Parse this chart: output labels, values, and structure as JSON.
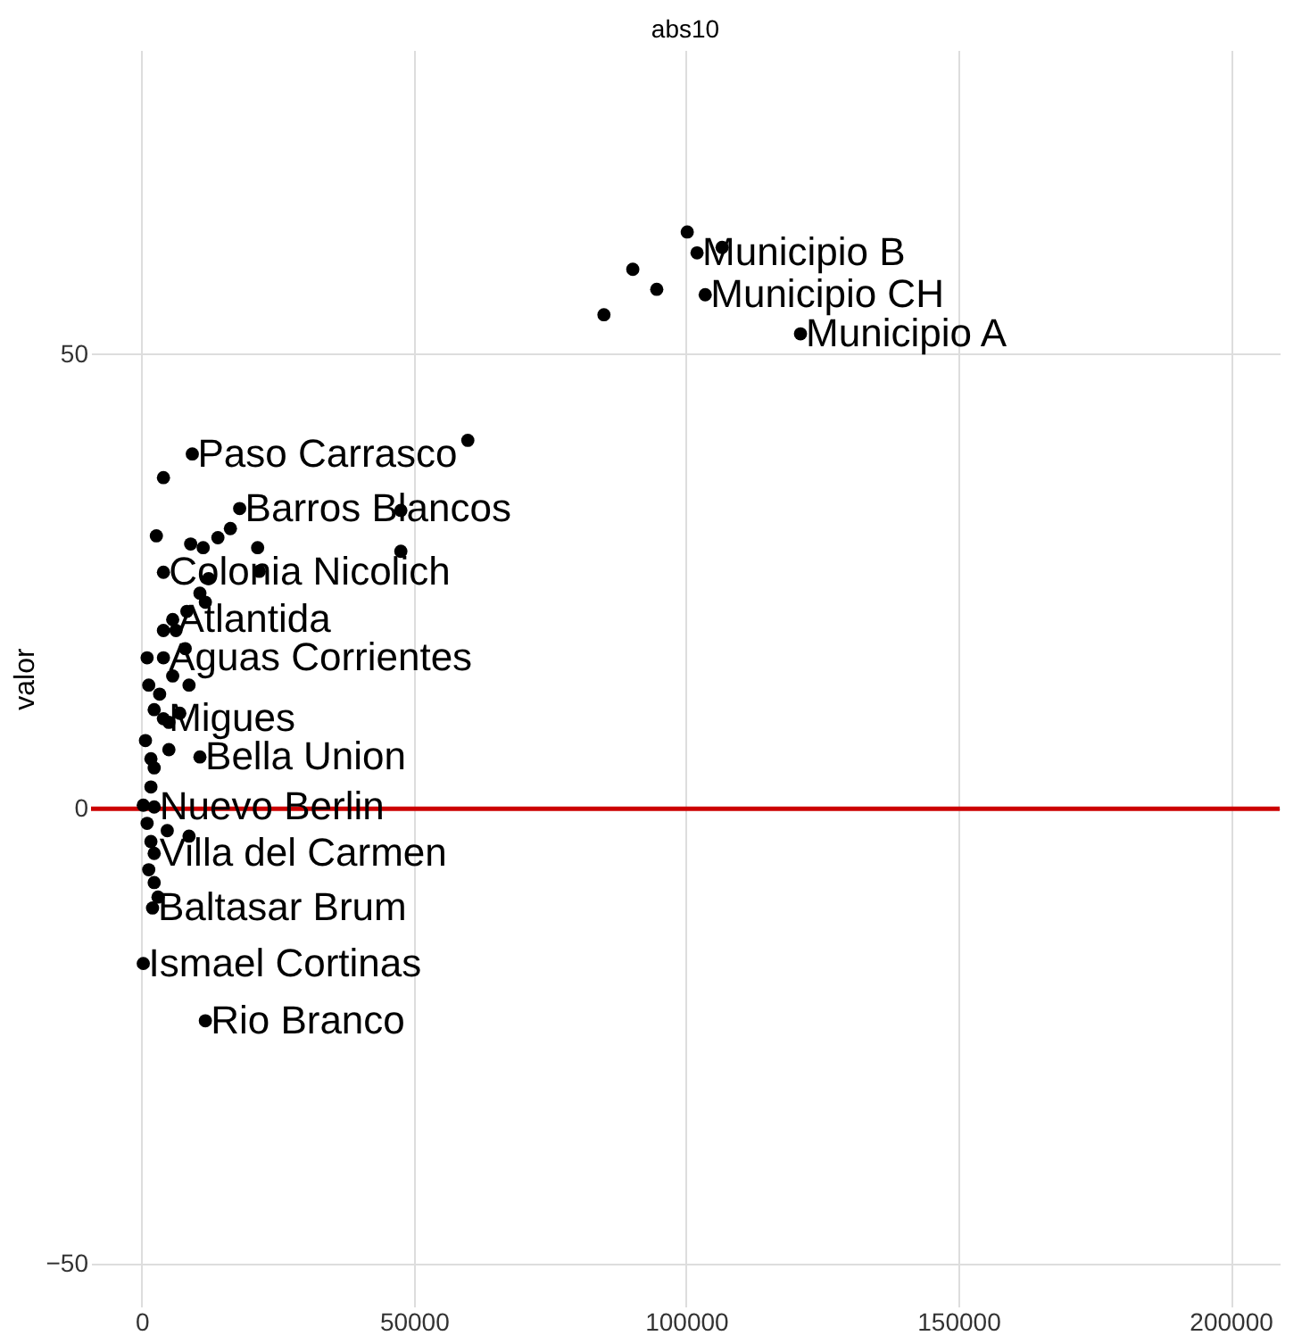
{
  "chart_data": {
    "type": "scatter",
    "title": "abs10",
    "ylabel": "valor",
    "x": [
      9300,
      18000,
      4000,
      5700,
      4000,
      4000,
      10700,
      2300,
      2300,
      2000,
      300,
      11700,
      102000,
      103500,
      121000,
      100200,
      106600,
      90200,
      94600,
      84900,
      59900,
      47600,
      47600,
      21300,
      4000,
      2700,
      9000,
      11300,
      14000,
      16300,
      21600,
      8700,
      12300,
      8300,
      10700,
      11700,
      4000,
      1000,
      1300,
      2300,
      7000,
      700,
      2300,
      5700,
      1700,
      1000,
      8700,
      1700,
      1300,
      2300,
      4700,
      3000,
      5000,
      1700,
      6300,
      8000,
      3300,
      5000,
      300
    ],
    "series": [
      {
        "color": "#000000",
        "values": [
          39,
          33,
          26,
          20.8,
          16.6,
          9.9,
          5.7,
          0.2,
          -4.9,
          -10.9,
          -17,
          -23.3,
          61.1,
          56.5,
          52.2,
          63.4,
          61.7,
          59.3,
          57.1,
          54.3,
          40.5,
          32.8,
          28.3,
          28.7,
          36.4,
          30,
          29.1,
          28.7,
          29.8,
          30.8,
          26.1,
          13.6,
          25.3,
          21.7,
          23.7,
          22.7,
          19.6,
          16.6,
          13.6,
          10.9,
          10.5,
          7.5,
          4.5,
          14.6,
          2.4,
          -1.6,
          -3,
          -3.6,
          -6.7,
          -8.1,
          -2.4,
          -9.7,
          6.5,
          5.5,
          19.6,
          17.6,
          12.6,
          9.5,
          0.4
        ]
      }
    ],
    "annotations": [
      {
        "text": "Paso Carrasco",
        "x": 9300,
        "y": 39
      },
      {
        "text": "Barros Blancos",
        "x": 18000,
        "y": 33
      },
      {
        "text": "Colonia Nicolich",
        "x": 4000,
        "y": 26
      },
      {
        "text": "Atlantida",
        "x": 5700,
        "y": 20.8
      },
      {
        "text": "Aguas Corrientes",
        "x": 4000,
        "y": 16.6
      },
      {
        "text": "Migues",
        "x": 4000,
        "y": 9.9
      },
      {
        "text": "Bella Union",
        "x": 10700,
        "y": 5.7
      },
      {
        "text": "Nuevo Berlin",
        "x": 2300,
        "y": 0.2
      },
      {
        "text": "Villa del Carmen",
        "x": 2300,
        "y": -4.9
      },
      {
        "text": "Baltasar Brum",
        "x": 2000,
        "y": -10.9
      },
      {
        "text": "Ismael Cortinas",
        "x": 300,
        "y": -17
      },
      {
        "text": "Rio Branco",
        "x": 11700,
        "y": -23.3
      },
      {
        "text": "Municipio B",
        "x": 102000,
        "y": 61.1
      },
      {
        "text": "Municipio CH",
        "x": 103500,
        "y": 56.5
      },
      {
        "text": "Municipio A",
        "x": 121000,
        "y": 52.2
      }
    ],
    "ref_lines": [
      {
        "axis": "y",
        "value": 0,
        "color": "#cc0000"
      }
    ],
    "xlim": [
      -9300,
      209000
    ],
    "ylim": [
      -54.7,
      83.4
    ],
    "xticks": [
      0,
      50000,
      100000,
      150000,
      200000
    ],
    "yticks": [
      -50,
      0,
      50
    ],
    "grid": true,
    "marker": "circle"
  }
}
